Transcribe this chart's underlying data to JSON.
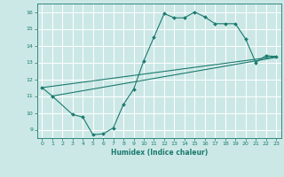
{
  "line1_x": [
    0,
    1,
    3,
    4,
    5,
    6,
    7,
    8,
    9,
    10,
    11,
    12,
    13,
    14,
    15,
    16,
    17,
    18,
    19,
    20,
    21,
    22,
    23
  ],
  "line1_y": [
    11.5,
    11.0,
    9.9,
    9.75,
    8.7,
    8.75,
    9.1,
    10.5,
    11.4,
    13.1,
    14.5,
    15.9,
    15.65,
    15.65,
    16.0,
    15.7,
    15.3,
    15.3,
    15.3,
    14.4,
    13.0,
    13.4,
    13.35
  ],
  "line2_x": [
    0,
    23
  ],
  "line2_y": [
    11.5,
    13.35
  ],
  "line3_x": [
    1,
    23
  ],
  "line3_y": [
    11.0,
    13.3
  ],
  "color": "#1a7a6e",
  "bg_color": "#cce8e6",
  "grid_color": "#ffffff",
  "xlabel": "Humidex (Indice chaleur)",
  "xlim": [
    -0.5,
    23.5
  ],
  "ylim": [
    8.5,
    16.5
  ],
  "yticks": [
    9,
    10,
    11,
    12,
    13,
    14,
    15,
    16
  ],
  "xticks": [
    0,
    1,
    2,
    3,
    4,
    5,
    6,
    7,
    8,
    9,
    10,
    11,
    12,
    13,
    14,
    15,
    16,
    17,
    18,
    19,
    20,
    21,
    22,
    23
  ],
  "marker": "D",
  "markersize": 2.0,
  "linewidth": 0.8
}
